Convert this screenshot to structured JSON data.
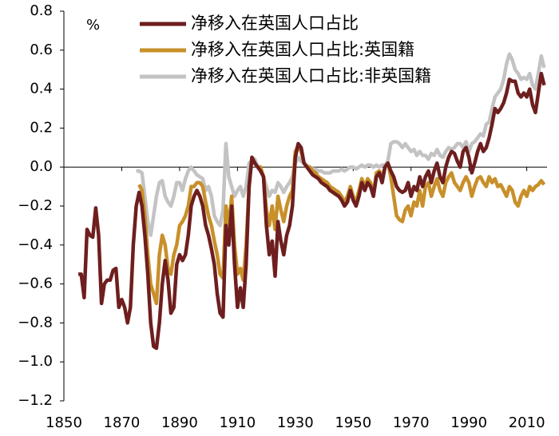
{
  "chart_data": {
    "type": "line",
    "y_unit": "%",
    "xlim": [
      1850,
      2017
    ],
    "ylim": [
      -1.2,
      0.8
    ],
    "xticks": [
      1850,
      1870,
      1890,
      1910,
      1930,
      1950,
      1970,
      1990,
      2010
    ],
    "yticks": [
      0.8,
      0.6,
      0.4,
      0.2,
      {
        "value": 0,
        "label": "0.0"
      },
      {
        "value": -0.2,
        "label": "−0.2"
      },
      {
        "value": -0.4,
        "label": "−0.4"
      },
      {
        "value": -0.6,
        "label": "−0.6"
      },
      {
        "value": -0.8,
        "label": "−0.8"
      },
      {
        "value": -1.0,
        "label": "−1.0"
      },
      {
        "value": -1.2,
        "label": "−1.2"
      }
    ],
    "legend": "upper left",
    "x": [
      1855,
      1856,
      1857,
      1858,
      1859,
      1860,
      1861,
      1862,
      1863,
      1864,
      1865,
      1866,
      1867,
      1868,
      1869,
      1870,
      1871,
      1872,
      1873,
      1874,
      1875,
      1876,
      1877,
      1878,
      1879,
      1880,
      1881,
      1882,
      1883,
      1884,
      1885,
      1886,
      1887,
      1888,
      1889,
      1890,
      1891,
      1892,
      1893,
      1894,
      1895,
      1896,
      1897,
      1898,
      1899,
      1900,
      1901,
      1902,
      1903,
      1904,
      1905,
      1906,
      1907,
      1908,
      1909,
      1910,
      1911,
      1912,
      1913,
      1914,
      1915,
      1916,
      1917,
      1918,
      1919,
      1920,
      1921,
      1922,
      1923,
      1924,
      1925,
      1926,
      1927,
      1928,
      1929,
      1930,
      1931,
      1932,
      1933,
      1934,
      1935,
      1936,
      1937,
      1938,
      1939,
      1940,
      1941,
      1942,
      1943,
      1944,
      1945,
      1946,
      1947,
      1948,
      1949,
      1950,
      1951,
      1952,
      1953,
      1954,
      1955,
      1956,
      1957,
      1958,
      1959,
      1960,
      1961,
      1962,
      1963,
      1964,
      1965,
      1966,
      1967,
      1968,
      1969,
      1970,
      1971,
      1972,
      1973,
      1974,
      1975,
      1976,
      1977,
      1978,
      1979,
      1980,
      1981,
      1982,
      1983,
      1984,
      1985,
      1986,
      1987,
      1988,
      1989,
      1990,
      1991,
      1992,
      1993,
      1994,
      1995,
      1996,
      1997,
      1998,
      1999,
      2000,
      2001,
      2002,
      2003,
      2004,
      2005,
      2006,
      2007,
      2008,
      2009,
      2010,
      2011,
      2012,
      2013,
      2014,
      2015,
      2016
    ],
    "series": [
      {
        "name": "净移入在英国人口占比",
        "color": "#6e1e1e",
        "values": [
          -0.55,
          -0.55,
          -0.67,
          -0.32,
          -0.35,
          -0.36,
          -0.21,
          -0.35,
          -0.7,
          -0.6,
          -0.58,
          -0.58,
          -0.53,
          -0.52,
          -0.72,
          -0.68,
          -0.72,
          -0.8,
          -0.72,
          -0.4,
          -0.2,
          -0.13,
          -0.2,
          -0.35,
          -0.55,
          -0.8,
          -0.92,
          -0.93,
          -0.8,
          -0.6,
          -0.48,
          -0.58,
          -0.75,
          -0.72,
          -0.5,
          -0.45,
          -0.48,
          -0.45,
          -0.35,
          -0.2,
          -0.15,
          -0.12,
          -0.15,
          -0.2,
          -0.3,
          -0.35,
          -0.42,
          -0.5,
          -0.65,
          -0.75,
          -0.77,
          -0.3,
          -0.4,
          -0.2,
          -0.5,
          -0.72,
          -0.62,
          -0.72,
          -0.5,
          -0.1,
          0.05,
          0.02,
          0.0,
          -0.02,
          -0.05,
          -0.3,
          -0.45,
          -0.38,
          -0.56,
          -0.28,
          -0.38,
          -0.45,
          -0.35,
          -0.3,
          -0.2,
          0.05,
          0.12,
          0.1,
          0.02,
          0.0,
          -0.02,
          -0.04,
          -0.05,
          -0.06,
          -0.08,
          -0.09,
          -0.1,
          -0.12,
          -0.13,
          -0.14,
          -0.15,
          -0.17,
          -0.2,
          -0.18,
          -0.12,
          -0.17,
          -0.2,
          -0.15,
          -0.08,
          -0.12,
          -0.08,
          -0.1,
          -0.15,
          -0.05,
          -0.03,
          -0.08,
          0.0,
          0.02,
          -0.02,
          -0.05,
          -0.1,
          -0.12,
          -0.13,
          -0.12,
          -0.08,
          -0.15,
          -0.1,
          -0.12,
          -0.05,
          -0.1,
          -0.05,
          -0.02,
          -0.08,
          -0.02,
          0.02,
          -0.05,
          -0.08,
          0.0,
          0.05,
          0.08,
          0.07,
          0.03,
          0.0,
          0.08,
          0.1,
          0.05,
          -0.03,
          0.02,
          0.08,
          0.12,
          0.08,
          0.1,
          0.15,
          0.22,
          0.3,
          0.28,
          0.3,
          0.33,
          0.38,
          0.45,
          0.44,
          0.44,
          0.38,
          0.36,
          0.38,
          0.36,
          0.4,
          0.32,
          0.28,
          0.38,
          0.48,
          0.42
        ]
      },
      {
        "name": "净移入在英国人口占比:英国籍",
        "color": "#c8902a",
        "values": [
          null,
          null,
          null,
          null,
          null,
          null,
          null,
          null,
          null,
          null,
          null,
          null,
          null,
          null,
          null,
          null,
          null,
          null,
          null,
          null,
          null,
          -0.09,
          -0.12,
          -0.25,
          -0.45,
          -0.6,
          -0.65,
          -0.7,
          -0.45,
          -0.35,
          -0.4,
          -0.52,
          -0.55,
          -0.45,
          -0.4,
          -0.3,
          -0.28,
          -0.25,
          -0.2,
          -0.1,
          -0.1,
          -0.08,
          -0.08,
          -0.1,
          -0.18,
          -0.25,
          -0.3,
          -0.38,
          -0.45,
          -0.55,
          -0.57,
          -0.2,
          -0.3,
          -0.15,
          -0.4,
          -0.55,
          -0.52,
          -0.58,
          -0.4,
          -0.1,
          0.05,
          0.02,
          0.0,
          0.0,
          -0.05,
          -0.22,
          -0.3,
          -0.2,
          -0.32,
          -0.15,
          -0.22,
          -0.28,
          -0.2,
          -0.15,
          -0.12,
          0.08,
          0.11,
          0.08,
          0.02,
          0.0,
          0.0,
          -0.02,
          -0.03,
          -0.05,
          -0.06,
          -0.07,
          -0.08,
          -0.1,
          -0.11,
          -0.12,
          -0.13,
          -0.15,
          -0.18,
          -0.15,
          -0.1,
          -0.15,
          -0.18,
          -0.12,
          -0.06,
          -0.1,
          -0.06,
          -0.08,
          -0.14,
          -0.03,
          -0.02,
          -0.05,
          0.0,
          0.02,
          -0.05,
          -0.15,
          -0.25,
          -0.27,
          -0.28,
          -0.22,
          -0.2,
          -0.25,
          -0.18,
          -0.2,
          -0.12,
          -0.2,
          -0.1,
          -0.08,
          -0.15,
          -0.1,
          -0.06,
          -0.12,
          -0.15,
          -0.08,
          -0.05,
          -0.03,
          -0.08,
          -0.1,
          -0.12,
          -0.08,
          -0.05,
          -0.08,
          -0.15,
          -0.1,
          -0.06,
          -0.05,
          -0.08,
          -0.1,
          -0.05,
          -0.08,
          -0.06,
          -0.1,
          -0.09,
          -0.12,
          -0.15,
          -0.1,
          -0.12,
          -0.18,
          -0.2,
          -0.15,
          -0.12,
          -0.15,
          -0.1,
          -0.12,
          -0.1,
          -0.09,
          -0.07,
          -0.09
        ]
      },
      {
        "name": "净移入在英国人口占比:非英国籍",
        "color": "#c3c3c3",
        "values": [
          null,
          null,
          null,
          null,
          null,
          null,
          null,
          null,
          null,
          null,
          null,
          null,
          null,
          null,
          null,
          null,
          null,
          null,
          null,
          null,
          -0.02,
          -0.02,
          -0.03,
          -0.15,
          -0.28,
          -0.35,
          -0.25,
          -0.15,
          -0.08,
          -0.07,
          -0.15,
          -0.18,
          -0.2,
          -0.15,
          -0.08,
          -0.08,
          -0.12,
          -0.06,
          -0.02,
          0.0,
          -0.02,
          -0.04,
          -0.05,
          -0.06,
          -0.12,
          -0.1,
          -0.15,
          -0.25,
          -0.28,
          -0.3,
          -0.22,
          0.12,
          -0.05,
          -0.1,
          -0.15,
          -0.12,
          -0.1,
          -0.15,
          -0.1,
          0.02,
          0.03,
          0.04,
          0.0,
          -0.02,
          -0.05,
          -0.1,
          -0.15,
          -0.12,
          -0.13,
          -0.08,
          -0.1,
          -0.13,
          -0.1,
          -0.08,
          -0.05,
          0.02,
          0.05,
          0.03,
          0.02,
          0.01,
          0.0,
          -0.01,
          -0.01,
          -0.02,
          -0.02,
          -0.03,
          -0.03,
          -0.03,
          -0.02,
          -0.02,
          -0.02,
          -0.01,
          -0.02,
          -0.01,
          0.0,
          0.0,
          -0.01,
          0.0,
          0.01,
          0.0,
          0.01,
          0.01,
          0.0,
          0.01,
          0.0,
          0.01,
          0.01,
          0.03,
          0.12,
          0.13,
          0.13,
          0.12,
          0.1,
          0.12,
          0.1,
          0.08,
          0.09,
          0.06,
          0.08,
          0.06,
          0.06,
          0.04,
          0.07,
          0.06,
          0.09,
          0.06,
          0.05,
          0.08,
          0.1,
          0.09,
          0.1,
          0.12,
          0.12,
          0.1,
          0.13,
          0.08,
          0.12,
          0.13,
          0.15,
          0.17,
          0.16,
          0.22,
          0.23,
          0.3,
          0.36,
          0.38,
          0.4,
          0.45,
          0.53,
          0.58,
          0.55,
          0.5,
          0.48,
          0.45,
          0.46,
          0.45,
          0.48,
          0.42,
          0.4,
          0.48,
          0.57,
          0.51
        ]
      }
    ]
  }
}
